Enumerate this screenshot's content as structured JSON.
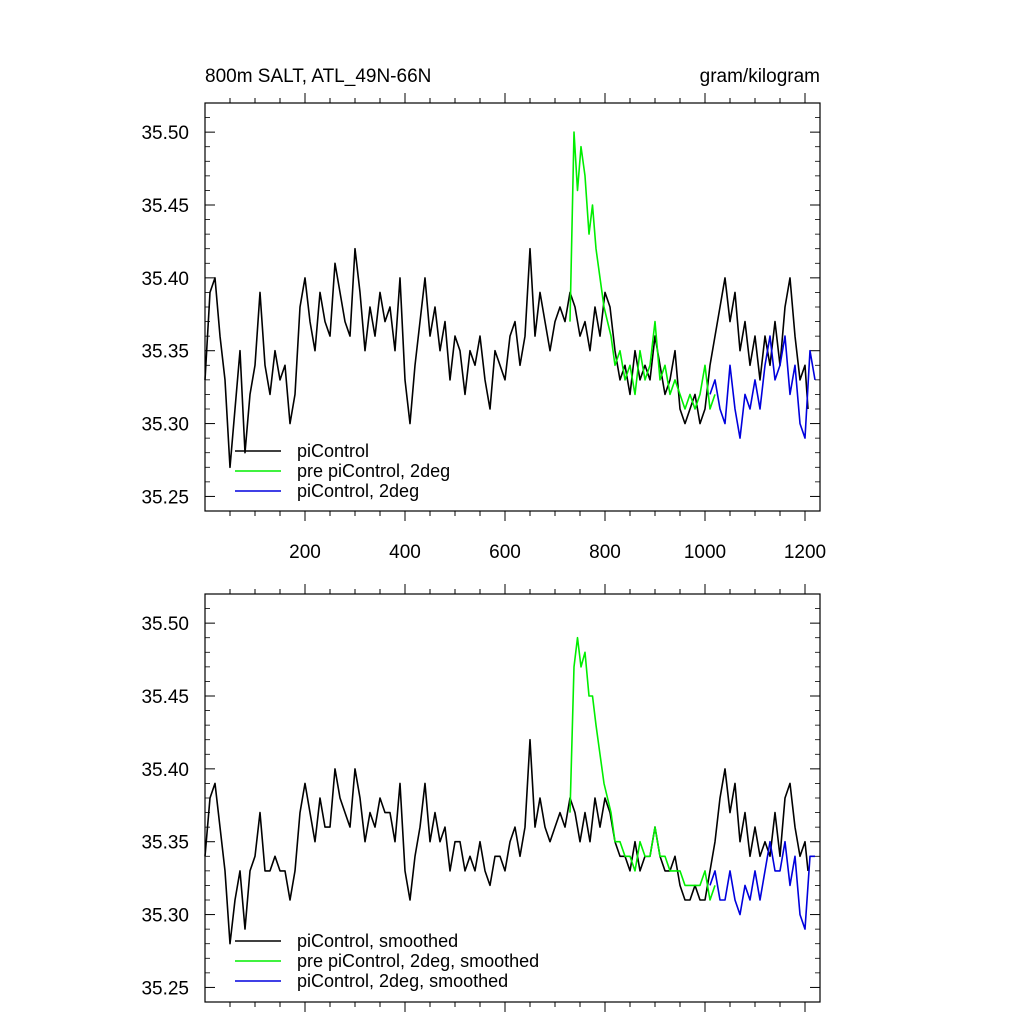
{
  "figure": {
    "title_left": "800m SALT, ATL_49N-66N",
    "title_right": "gram/kilogram"
  },
  "chart_data": [
    {
      "type": "line",
      "panel": "top",
      "title": "800m SALT, ATL_49N-66N",
      "units": "gram/kilogram",
      "xlim": [
        0,
        1230
      ],
      "ylim": [
        35.24,
        35.52
      ],
      "xticks": [
        200,
        400,
        600,
        800,
        1000,
        1200
      ],
      "xtick_labels": [
        "200",
        "400",
        "600",
        "800",
        "1000",
        "1200"
      ],
      "yticks": [
        35.25,
        35.3,
        35.35,
        35.4,
        35.45,
        35.5
      ],
      "ytick_labels": [
        "35.25",
        "35.30",
        "35.35",
        "35.40",
        "35.45",
        "35.50"
      ],
      "legend_position": "bottom-left",
      "series": [
        {
          "name": "piControl",
          "color": "#000000",
          "x": [
            0,
            10,
            20,
            30,
            40,
            50,
            60,
            70,
            80,
            90,
            100,
            110,
            120,
            130,
            140,
            150,
            160,
            170,
            180,
            190,
            200,
            210,
            220,
            230,
            240,
            250,
            260,
            270,
            280,
            290,
            300,
            310,
            320,
            330,
            340,
            350,
            360,
            370,
            380,
            390,
            400,
            410,
            420,
            430,
            440,
            450,
            460,
            470,
            480,
            490,
            500,
            510,
            520,
            530,
            540,
            550,
            560,
            570,
            580,
            590,
            600,
            610,
            620,
            630,
            640,
            650,
            660,
            670,
            680,
            690,
            700,
            710,
            720,
            730,
            740,
            750,
            760,
            770,
            780,
            790,
            800,
            810,
            820,
            830,
            840,
            850,
            860,
            870,
            880,
            890,
            900,
            910,
            920,
            930,
            940,
            950,
            960,
            970,
            980,
            990,
            1000,
            1010,
            1020,
            1030,
            1040,
            1050,
            1060,
            1070,
            1080,
            1090,
            1100,
            1110,
            1120,
            1130,
            1140,
            1150,
            1160,
            1170,
            1180,
            1190,
            1200,
            1206
          ],
          "values": [
            35.33,
            35.39,
            35.4,
            35.36,
            35.33,
            35.27,
            35.31,
            35.35,
            35.28,
            35.32,
            35.34,
            35.39,
            35.34,
            35.32,
            35.35,
            35.33,
            35.34,
            35.3,
            35.32,
            35.38,
            35.4,
            35.37,
            35.35,
            35.39,
            35.37,
            35.36,
            35.41,
            35.39,
            35.37,
            35.36,
            35.42,
            35.39,
            35.35,
            35.38,
            35.36,
            35.39,
            35.37,
            35.38,
            35.35,
            35.4,
            35.33,
            35.3,
            35.34,
            35.37,
            35.4,
            35.36,
            35.38,
            35.35,
            35.37,
            35.33,
            35.36,
            35.35,
            35.32,
            35.35,
            35.34,
            35.36,
            35.33,
            35.31,
            35.35,
            35.34,
            35.33,
            35.36,
            35.37,
            35.34,
            35.36,
            35.42,
            35.36,
            35.39,
            35.37,
            35.35,
            35.37,
            35.38,
            35.37,
            35.39,
            35.38,
            35.36,
            35.37,
            35.35,
            35.38,
            35.36,
            35.39,
            35.38,
            35.35,
            35.33,
            35.34,
            35.32,
            35.35,
            35.33,
            35.34,
            35.33,
            35.36,
            35.34,
            35.32,
            35.33,
            35.35,
            35.31,
            35.3,
            35.31,
            35.32,
            35.3,
            35.31,
            35.34,
            35.36,
            35.38,
            35.4,
            35.37,
            35.39,
            35.35,
            35.37,
            35.34,
            35.36,
            35.33,
            35.36,
            35.34,
            35.37,
            35.34,
            35.38,
            35.4,
            35.36,
            35.33,
            35.34,
            35.31
          ]
        },
        {
          "name": "pre piControl, 2deg",
          "color": "#00ee00",
          "x": [
            730,
            738,
            745,
            752,
            760,
            768,
            775,
            782,
            790,
            798,
            805,
            812,
            820,
            830,
            840,
            850,
            860,
            870,
            880,
            890,
            900,
            910,
            920,
            930,
            940,
            950,
            960,
            970,
            980,
            990,
            1000,
            1010,
            1020
          ],
          "values": [
            35.37,
            35.5,
            35.46,
            35.49,
            35.47,
            35.43,
            35.45,
            35.42,
            35.4,
            35.38,
            35.37,
            35.36,
            35.34,
            35.35,
            35.33,
            35.34,
            35.32,
            35.35,
            35.33,
            35.34,
            35.37,
            35.33,
            35.34,
            35.32,
            35.33,
            35.32,
            35.31,
            35.32,
            35.31,
            35.32,
            35.34,
            35.31,
            35.32
          ]
        },
        {
          "name": "piControl, 2deg",
          "color": "#0000dd",
          "x": [
            1010,
            1020,
            1030,
            1040,
            1050,
            1060,
            1070,
            1080,
            1090,
            1100,
            1110,
            1120,
            1130,
            1140,
            1150,
            1160,
            1170,
            1180,
            1190,
            1200,
            1210,
            1220
          ],
          "values": [
            35.32,
            35.33,
            35.31,
            35.3,
            35.34,
            35.31,
            35.29,
            35.32,
            35.31,
            35.33,
            35.31,
            35.34,
            35.36,
            35.33,
            35.34,
            35.36,
            35.32,
            35.34,
            35.3,
            35.29,
            35.35,
            35.33
          ]
        }
      ],
      "legend": [
        "piControl",
        "pre piControl, 2deg",
        "piControl, 2deg"
      ]
    },
    {
      "type": "line",
      "panel": "bottom",
      "xlim": [
        0,
        1230
      ],
      "ylim": [
        35.24,
        35.52
      ],
      "yticks": [
        35.25,
        35.3,
        35.35,
        35.4,
        35.45,
        35.5
      ],
      "ytick_labels": [
        "35.25",
        "35.30",
        "35.35",
        "35.40",
        "35.45",
        "35.50"
      ],
      "legend_position": "bottom-left",
      "series": [
        {
          "name": "piControl, smoothed",
          "color": "#000000",
          "x": [
            0,
            10,
            20,
            30,
            40,
            50,
            60,
            70,
            80,
            90,
            100,
            110,
            120,
            130,
            140,
            150,
            160,
            170,
            180,
            190,
            200,
            210,
            220,
            230,
            240,
            250,
            260,
            270,
            280,
            290,
            300,
            310,
            320,
            330,
            340,
            350,
            360,
            370,
            380,
            390,
            400,
            410,
            420,
            430,
            440,
            450,
            460,
            470,
            480,
            490,
            500,
            510,
            520,
            530,
            540,
            550,
            560,
            570,
            580,
            590,
            600,
            610,
            620,
            630,
            640,
            650,
            660,
            670,
            680,
            690,
            700,
            710,
            720,
            730,
            740,
            750,
            760,
            770,
            780,
            790,
            800,
            810,
            820,
            830,
            840,
            850,
            860,
            870,
            880,
            890,
            900,
            910,
            920,
            930,
            940,
            950,
            960,
            970,
            980,
            990,
            1000,
            1010,
            1020,
            1030,
            1040,
            1050,
            1060,
            1070,
            1080,
            1090,
            1100,
            1110,
            1120,
            1130,
            1140,
            1150,
            1160,
            1170,
            1180,
            1190,
            1200,
            1206
          ],
          "values": [
            35.34,
            35.38,
            35.39,
            35.36,
            35.33,
            35.28,
            35.31,
            35.33,
            35.29,
            35.33,
            35.34,
            35.37,
            35.33,
            35.33,
            35.34,
            35.33,
            35.33,
            35.31,
            35.33,
            35.37,
            35.39,
            35.37,
            35.35,
            35.38,
            35.36,
            35.36,
            35.4,
            35.38,
            35.37,
            35.36,
            35.4,
            35.38,
            35.35,
            35.37,
            35.36,
            35.38,
            35.37,
            35.37,
            35.35,
            35.39,
            35.33,
            35.31,
            35.34,
            35.36,
            35.39,
            35.35,
            35.37,
            35.35,
            35.36,
            35.33,
            35.35,
            35.35,
            35.33,
            35.34,
            35.33,
            35.35,
            35.33,
            35.32,
            35.34,
            35.34,
            35.33,
            35.35,
            35.36,
            35.34,
            35.36,
            35.42,
            35.36,
            35.38,
            35.36,
            35.35,
            35.36,
            35.37,
            35.36,
            35.38,
            35.37,
            35.35,
            35.37,
            35.35,
            35.38,
            35.36,
            35.38,
            35.37,
            35.35,
            35.34,
            35.34,
            35.33,
            35.35,
            35.33,
            35.34,
            35.34,
            35.36,
            35.34,
            35.33,
            35.33,
            35.34,
            35.32,
            35.31,
            35.31,
            35.32,
            35.31,
            35.31,
            35.33,
            35.35,
            35.38,
            35.4,
            35.37,
            35.39,
            35.35,
            35.37,
            35.34,
            35.36,
            35.34,
            35.35,
            35.34,
            35.37,
            35.34,
            35.38,
            35.39,
            35.36,
            35.34,
            35.35,
            35.33
          ]
        },
        {
          "name": "pre piControl, 2deg, smoothed",
          "color": "#00ee00",
          "x": [
            730,
            738,
            745,
            752,
            760,
            768,
            775,
            782,
            790,
            798,
            805,
            812,
            820,
            830,
            840,
            850,
            860,
            870,
            880,
            890,
            900,
            910,
            920,
            930,
            940,
            950,
            960,
            970,
            980,
            990,
            1000,
            1010,
            1020
          ],
          "values": [
            35.37,
            35.47,
            35.49,
            35.47,
            35.48,
            35.45,
            35.45,
            35.43,
            35.41,
            35.39,
            35.38,
            35.37,
            35.35,
            35.35,
            35.34,
            35.34,
            35.33,
            35.35,
            35.34,
            35.34,
            35.36,
            35.34,
            35.34,
            35.33,
            35.33,
            35.33,
            35.32,
            35.32,
            35.32,
            35.32,
            35.33,
            35.31,
            35.32
          ]
        },
        {
          "name": "piControl, 2deg, smoothed",
          "color": "#0000dd",
          "x": [
            1010,
            1020,
            1030,
            1040,
            1050,
            1060,
            1070,
            1080,
            1090,
            1100,
            1110,
            1120,
            1130,
            1140,
            1150,
            1160,
            1170,
            1180,
            1190,
            1200,
            1210,
            1220
          ],
          "values": [
            35.32,
            35.33,
            35.31,
            35.31,
            35.33,
            35.31,
            35.3,
            35.32,
            35.31,
            35.33,
            35.31,
            35.33,
            35.35,
            35.33,
            35.33,
            35.35,
            35.32,
            35.34,
            35.3,
            35.29,
            35.34,
            35.34
          ]
        }
      ],
      "legend": [
        "piControl, smoothed",
        "pre piControl, 2deg, smoothed",
        "piControl, 2deg, smoothed"
      ]
    }
  ]
}
